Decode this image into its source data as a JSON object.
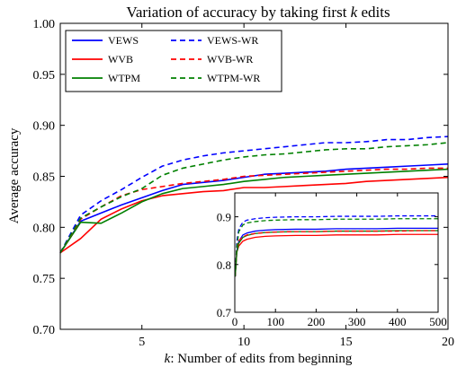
{
  "chart_data": {
    "type": "line",
    "title_prefix": "Variation of accuracy by taking first ",
    "title_var": "k",
    "title_suffix": " edits",
    "xlabel_var": "k",
    "xlabel_rest": ": Number of edits from beginning",
    "ylabel": "Average accuracy",
    "xlim": [
      1,
      20
    ],
    "ylim": [
      0.7,
      1.0
    ],
    "xticks": [
      5,
      10,
      15,
      20
    ],
    "yticks": [
      0.7,
      0.75,
      0.8,
      0.85,
      0.9,
      0.95,
      1.0
    ],
    "ytick_labels": [
      "0.70",
      "0.75",
      "0.80",
      "0.85",
      "0.90",
      "0.95",
      "1.00"
    ],
    "legend_position": "top-left",
    "x": [
      1,
      2,
      3,
      4,
      5,
      6,
      7,
      8,
      9,
      10,
      11,
      12,
      13,
      14,
      15,
      16,
      17,
      18,
      19,
      20
    ],
    "series": [
      {
        "name": "VEWS",
        "color": "#0000ff",
        "dashed": false,
        "values": [
          0.775,
          0.806,
          0.814,
          0.822,
          0.829,
          0.836,
          0.842,
          0.844,
          0.846,
          0.849,
          0.852,
          0.853,
          0.854,
          0.855,
          0.857,
          0.858,
          0.859,
          0.86,
          0.861,
          0.862
        ]
      },
      {
        "name": "WVB",
        "color": "#ff0000",
        "dashed": false,
        "values": [
          0.775,
          0.789,
          0.808,
          0.818,
          0.826,
          0.831,
          0.833,
          0.835,
          0.836,
          0.839,
          0.839,
          0.84,
          0.841,
          0.842,
          0.843,
          0.845,
          0.846,
          0.847,
          0.848,
          0.849
        ]
      },
      {
        "name": "WTPM",
        "color": "#008000",
        "dashed": false,
        "values": [
          0.775,
          0.805,
          0.804,
          0.814,
          0.825,
          0.833,
          0.838,
          0.84,
          0.842,
          0.845,
          0.847,
          0.849,
          0.85,
          0.851,
          0.852,
          0.853,
          0.854,
          0.855,
          0.856,
          0.857
        ]
      },
      {
        "name": "VEWS-WR",
        "color": "#0000ff",
        "dashed": true,
        "values": [
          0.775,
          0.812,
          0.826,
          0.837,
          0.849,
          0.86,
          0.866,
          0.87,
          0.873,
          0.875,
          0.877,
          0.879,
          0.881,
          0.883,
          0.883,
          0.884,
          0.886,
          0.886,
          0.888,
          0.889
        ]
      },
      {
        "name": "WVB-WR",
        "color": "#ff0000",
        "dashed": true,
        "values": [
          0.775,
          0.808,
          0.82,
          0.831,
          0.837,
          0.84,
          0.843,
          0.845,
          0.847,
          0.85,
          0.851,
          0.852,
          0.853,
          0.854,
          0.855,
          0.856,
          0.857,
          0.857,
          0.858,
          0.858
        ]
      },
      {
        "name": "WTPM-WR",
        "color": "#008000",
        "dashed": true,
        "values": [
          0.775,
          0.809,
          0.82,
          0.83,
          0.838,
          0.851,
          0.858,
          0.862,
          0.866,
          0.869,
          0.871,
          0.872,
          0.874,
          0.876,
          0.877,
          0.877,
          0.879,
          0.88,
          0.881,
          0.883
        ]
      }
    ],
    "inset": {
      "xlim": [
        0,
        500
      ],
      "ylim": [
        0.7,
        0.95
      ],
      "xticks": [
        0,
        100,
        200,
        300,
        400,
        500
      ],
      "yticks": [
        0.7,
        0.8,
        0.9
      ],
      "ytick_labels": [
        "0.7",
        "0.8",
        "0.9"
      ],
      "x": [
        1,
        5,
        10,
        20,
        30,
        50,
        75,
        100,
        150,
        200,
        250,
        300,
        350,
        400,
        450,
        500
      ],
      "series": [
        {
          "name": "VEWS",
          "color": "#0000ff",
          "dashed": false,
          "values": [
            0.775,
            0.829,
            0.849,
            0.862,
            0.866,
            0.87,
            0.872,
            0.873,
            0.874,
            0.874,
            0.875,
            0.875,
            0.875,
            0.876,
            0.876,
            0.876
          ]
        },
        {
          "name": "WVB",
          "color": "#ff0000",
          "dashed": false,
          "values": [
            0.775,
            0.826,
            0.839,
            0.849,
            0.853,
            0.857,
            0.859,
            0.86,
            0.861,
            0.861,
            0.862,
            0.862,
            0.862,
            0.863,
            0.863,
            0.863
          ]
        },
        {
          "name": "WTPM",
          "color": "#008000",
          "dashed": false,
          "values": [
            0.775,
            0.825,
            0.845,
            0.857,
            0.861,
            0.865,
            0.867,
            0.868,
            0.869,
            0.869,
            0.87,
            0.87,
            0.87,
            0.871,
            0.871,
            0.871
          ]
        },
        {
          "name": "VEWS-WR",
          "color": "#0000ff",
          "dashed": true,
          "values": [
            0.775,
            0.849,
            0.875,
            0.889,
            0.893,
            0.896,
            0.898,
            0.899,
            0.9,
            0.9,
            0.901,
            0.901,
            0.901,
            0.902,
            0.902,
            0.902
          ]
        },
        {
          "name": "WVB-WR",
          "color": "#ff0000",
          "dashed": true,
          "values": [
            0.775,
            0.837,
            0.85,
            0.858,
            0.862,
            0.865,
            0.867,
            0.868,
            0.869,
            0.869,
            0.87,
            0.87,
            0.87,
            0.87,
            0.871,
            0.871
          ]
        },
        {
          "name": "WTPM-WR",
          "color": "#008000",
          "dashed": true,
          "values": [
            0.775,
            0.838,
            0.869,
            0.883,
            0.887,
            0.89,
            0.892,
            0.893,
            0.894,
            0.894,
            0.895,
            0.895,
            0.895,
            0.896,
            0.896,
            0.896
          ]
        }
      ]
    }
  }
}
